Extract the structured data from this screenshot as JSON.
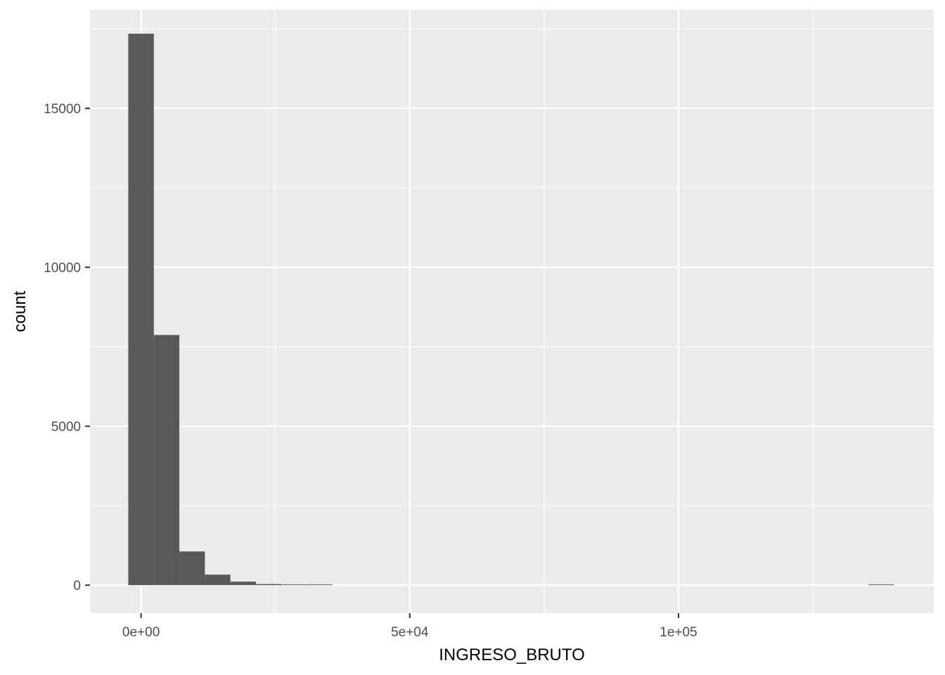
{
  "chart_data": {
    "type": "bar",
    "subtype": "histogram",
    "title": "",
    "xlabel": "INGRESO_BRUTO",
    "ylabel": "count",
    "xlim": [
      -9500,
      147500
    ],
    "ylim": [
      -880,
      18100
    ],
    "x_ticks": [
      {
        "value": 0,
        "label": "0e+00"
      },
      {
        "value": 50000,
        "label": "5e+04"
      },
      {
        "value": 100000,
        "label": "1e+05"
      }
    ],
    "x_minor_ticks": [
      25000,
      75000,
      125000
    ],
    "y_ticks": [
      {
        "value": 0,
        "label": "0"
      },
      {
        "value": 5000,
        "label": "5000"
      },
      {
        "value": 10000,
        "label": "10000"
      },
      {
        "value": 15000,
        "label": "15000"
      }
    ],
    "y_minor_ticks": [
      2500,
      7500,
      12500,
      17500
    ],
    "bin_width": 4750,
    "bins": [
      {
        "start": -2375,
        "end": 2375,
        "count": 17350
      },
      {
        "start": 2375,
        "end": 7125,
        "count": 7870
      },
      {
        "start": 7125,
        "end": 11875,
        "count": 1060
      },
      {
        "start": 11875,
        "end": 16625,
        "count": 330
      },
      {
        "start": 16625,
        "end": 21375,
        "count": 110
      },
      {
        "start": 21375,
        "end": 26125,
        "count": 35
      },
      {
        "start": 26125,
        "end": 30875,
        "count": 15
      },
      {
        "start": 30875,
        "end": 35625,
        "count": 4
      },
      {
        "start": 35625,
        "end": 40375,
        "count": 0
      },
      {
        "start": 40375,
        "end": 45125,
        "count": 0
      },
      {
        "start": 45125,
        "end": 49875,
        "count": 0
      },
      {
        "start": 49875,
        "end": 54625,
        "count": 0
      },
      {
        "start": 54625,
        "end": 59375,
        "count": 0
      },
      {
        "start": 59375,
        "end": 64125,
        "count": 0
      },
      {
        "start": 64125,
        "end": 68875,
        "count": 0
      },
      {
        "start": 68875,
        "end": 73625,
        "count": 0
      },
      {
        "start": 73625,
        "end": 78375,
        "count": 0
      },
      {
        "start": 78375,
        "end": 83125,
        "count": 0
      },
      {
        "start": 83125,
        "end": 87875,
        "count": 0
      },
      {
        "start": 87875,
        "end": 92625,
        "count": 0
      },
      {
        "start": 92625,
        "end": 97375,
        "count": 0
      },
      {
        "start": 97375,
        "end": 102125,
        "count": 0
      },
      {
        "start": 102125,
        "end": 106875,
        "count": 0
      },
      {
        "start": 106875,
        "end": 111625,
        "count": 0
      },
      {
        "start": 111625,
        "end": 116375,
        "count": 0
      },
      {
        "start": 116375,
        "end": 121125,
        "count": 0
      },
      {
        "start": 121125,
        "end": 125875,
        "count": 0
      },
      {
        "start": 125875,
        "end": 130625,
        "count": 0
      },
      {
        "start": 130625,
        "end": 135375,
        "count": 0
      },
      {
        "start": 135375,
        "end": 140125,
        "count": 1
      }
    ],
    "grid": true,
    "legend": "none",
    "colors": {
      "panel_background": "#ebebeb",
      "grid_major": "#ffffff",
      "bar_fill": "#595959",
      "tick_mark": "#333333",
      "tick_label": "#4d4d4d"
    }
  }
}
